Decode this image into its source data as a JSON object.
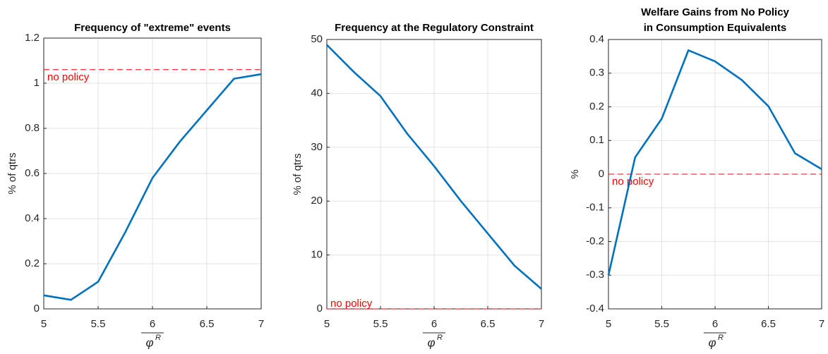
{
  "chart_data": [
    {
      "type": "line",
      "title": [
        "Frequency of \"extreme\" events"
      ],
      "y_label": "% of qtrs",
      "x_label": "φ",
      "x_label_superscript": "R",
      "x": [
        5,
        5.25,
        5.5,
        5.75,
        6,
        6.25,
        6.5,
        6.75,
        7
      ],
      "series": [
        {
          "color": "#0072bd",
          "values": [
            0.06,
            0.04,
            0.12,
            0.34,
            0.58,
            0.74,
            0.88,
            1.02,
            1.04
          ]
        }
      ],
      "reference_line": {
        "value": 1.06,
        "label": "no policy",
        "color": "#ff0000"
      },
      "xlim": [
        5,
        7
      ],
      "xticks": [
        5,
        5.5,
        6,
        6.5,
        7
      ],
      "ylim": [
        0,
        1.2
      ],
      "yticks": [
        0,
        0.2,
        0.4,
        0.6,
        0.8,
        1,
        1.2
      ],
      "grid": true
    },
    {
      "type": "line",
      "title": [
        "Frequency at the Regulatory Constraint"
      ],
      "y_label": "% of qtrs",
      "x_label": "φ",
      "x_label_superscript": "R",
      "x": [
        5,
        5.25,
        5.5,
        5.75,
        6,
        6.25,
        6.5,
        6.75,
        7
      ],
      "series": [
        {
          "color": "#0072bd",
          "values": [
            49,
            44,
            39.5,
            32.5,
            26.5,
            20,
            14,
            8,
            3.7
          ]
        }
      ],
      "reference_line": {
        "value": 0,
        "label": "no policy",
        "color": "#ff0000"
      },
      "xlim": [
        5,
        7
      ],
      "xticks": [
        5,
        5.5,
        6,
        6.5,
        7
      ],
      "ylim": [
        0,
        50
      ],
      "yticks": [
        0,
        10,
        20,
        30,
        40,
        50
      ],
      "grid": true
    },
    {
      "type": "line",
      "title": [
        "Welfare Gains from No Policy",
        "in Consumption Equivalents"
      ],
      "y_label": "%",
      "x_label": "φ",
      "x_label_superscript": "R",
      "x": [
        5,
        5.25,
        5.5,
        5.75,
        6,
        6.25,
        6.5,
        6.75,
        7
      ],
      "series": [
        {
          "color": "#0072bd",
          "values": [
            -0.3,
            0.05,
            0.165,
            0.368,
            0.335,
            0.28,
            0.202,
            0.062,
            0.015
          ]
        }
      ],
      "reference_line": {
        "value": 0,
        "label": "no policy",
        "color": "#ff0000"
      },
      "xlim": [
        5,
        7
      ],
      "xticks": [
        5,
        5.5,
        6,
        6.5,
        7
      ],
      "ylim": [
        -0.4,
        0.4
      ],
      "yticks": [
        -0.4,
        -0.3,
        -0.2,
        -0.1,
        0,
        0.1,
        0.2,
        0.3,
        0.4
      ],
      "grid": true
    }
  ]
}
